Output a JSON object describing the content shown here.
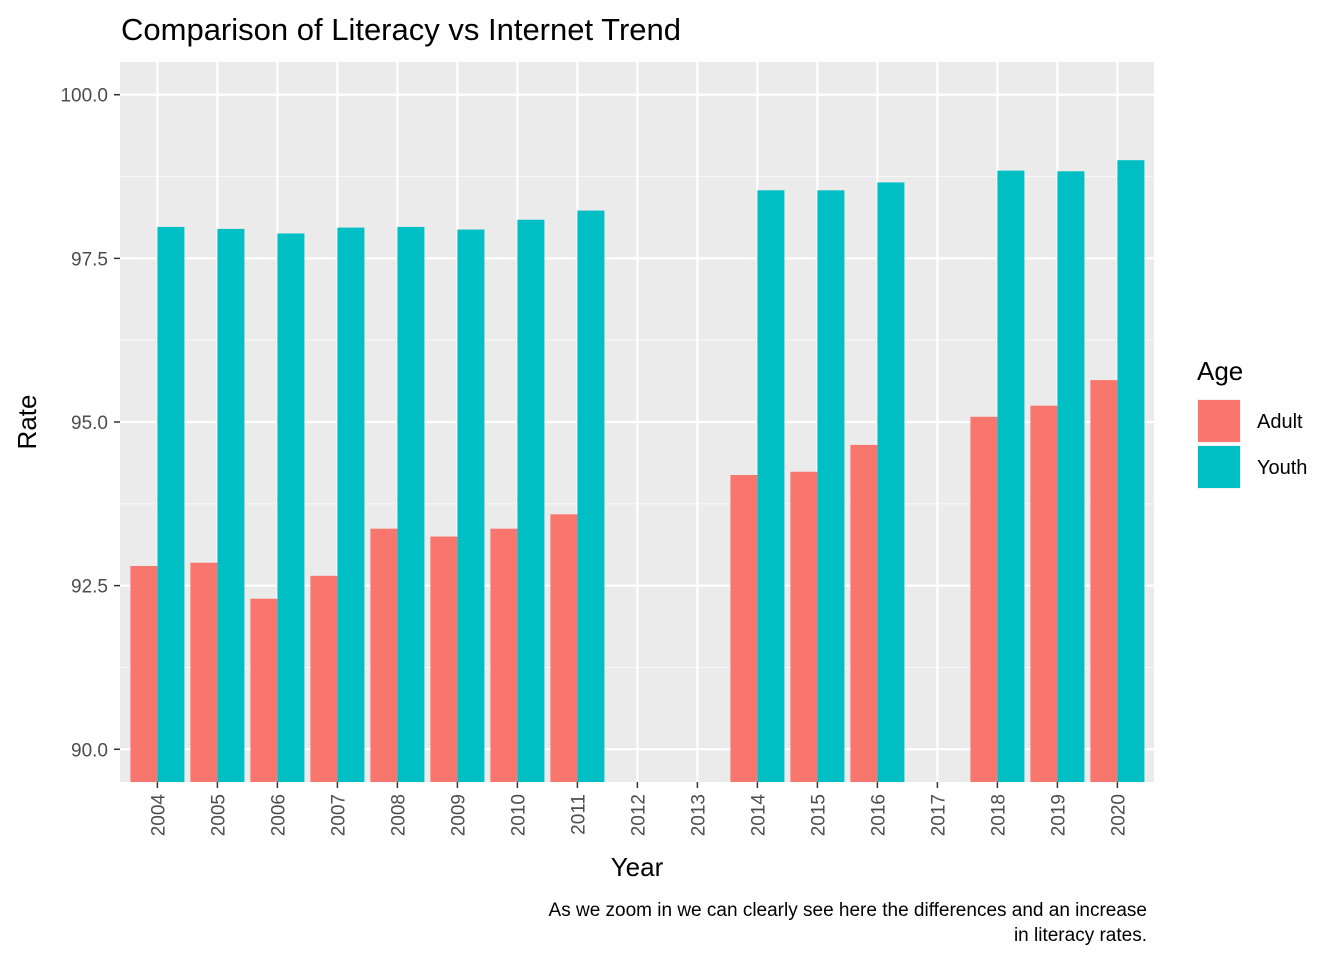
{
  "chart_data": {
    "type": "bar",
    "title": "Comparison of Literacy vs Internet Trend",
    "xlabel": "Year",
    "ylabel": "Rate",
    "caption_lines": [
      "As we zoom in we can clearly see here the differences and an increase",
      "in literacy rates."
    ],
    "categories": [
      "2004",
      "2005",
      "2006",
      "2007",
      "2008",
      "2009",
      "2010",
      "2011",
      "2012",
      "2013",
      "2014",
      "2015",
      "2016",
      "2017",
      "2018",
      "2019",
      "2020"
    ],
    "yticks": [
      "90.0",
      "92.5",
      "95.0",
      "97.5",
      "100.0"
    ],
    "ylim": [
      89.5,
      100.5
    ],
    "grid": true,
    "legend": {
      "title": "Age",
      "position": "right"
    },
    "series": [
      {
        "name": "Adult",
        "color": "#F8766D",
        "values": [
          92.8,
          92.85,
          92.3,
          92.65,
          93.37,
          93.25,
          93.37,
          93.59,
          null,
          null,
          94.19,
          94.24,
          94.65,
          null,
          95.08,
          95.25,
          95.64
        ]
      },
      {
        "name": "Youth",
        "color": "#00BFC4",
        "values": [
          97.98,
          97.95,
          97.88,
          97.97,
          97.98,
          97.94,
          98.09,
          98.23,
          null,
          null,
          98.54,
          98.54,
          98.66,
          null,
          98.84,
          98.83,
          99.0
        ]
      }
    ]
  }
}
